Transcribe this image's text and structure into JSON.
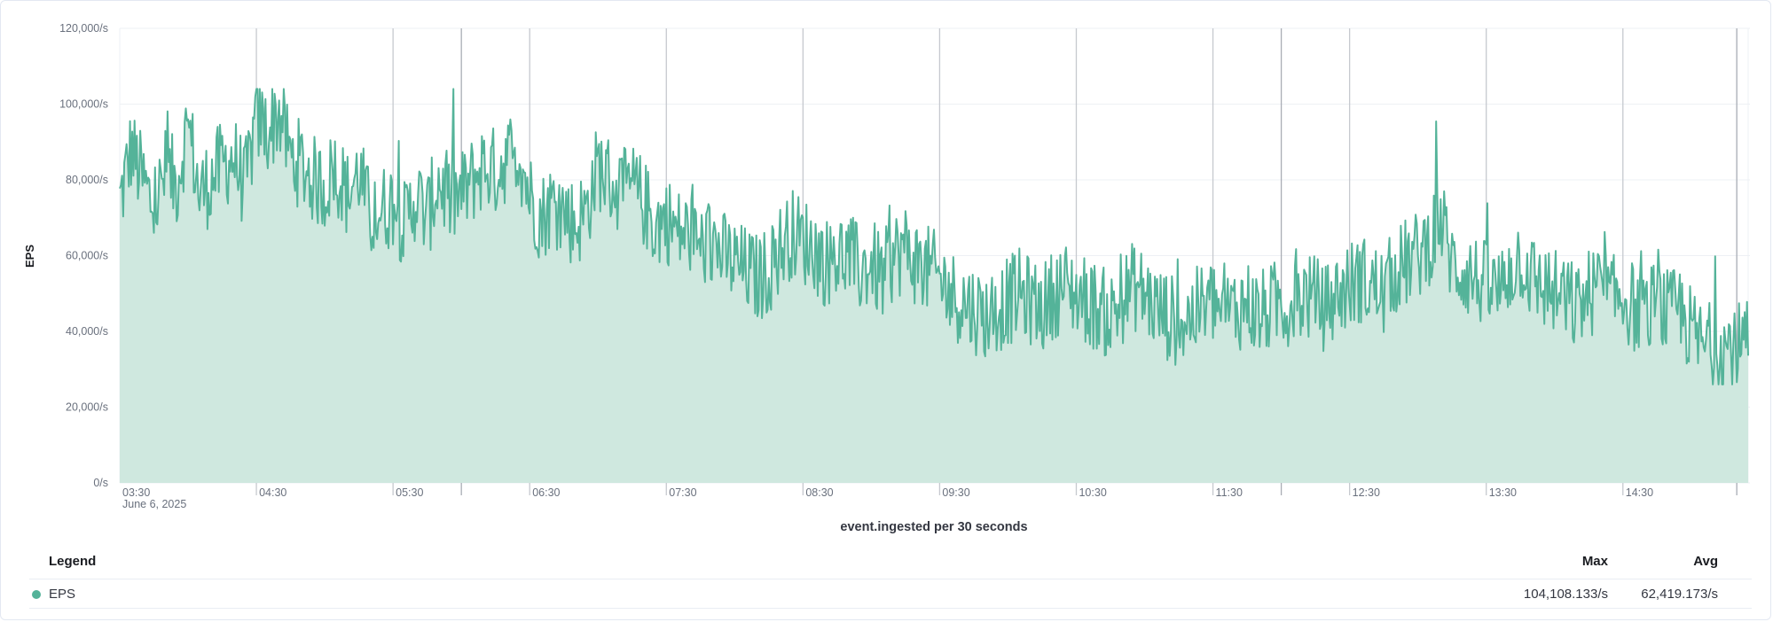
{
  "chart_data": {
    "type": "area",
    "title": "",
    "xlabel": "event.ingested per 30 seconds",
    "ylabel": "EPS",
    "ylim": [
      0,
      120000
    ],
    "y_ticks": [
      "120,000/s",
      "100,000/s",
      "80,000/s",
      "60,000/s",
      "40,000/s",
      "20,000/s",
      "0/s"
    ],
    "y_tick_values": [
      120000,
      100000,
      80000,
      60000,
      40000,
      20000,
      0
    ],
    "x_range": [
      "03:30",
      "15:25"
    ],
    "x_ticks": [
      "03:30",
      "04:30",
      "05:30",
      "06:30",
      "07:30",
      "08:30",
      "09:30",
      "10:30",
      "11:30",
      "12:30",
      "13:30",
      "14:30"
    ],
    "x_sub_label": "June 6, 2025",
    "interval_seconds": 30,
    "grid": true,
    "series": [
      {
        "name": "EPS",
        "color": "#54b399",
        "sample_interval_minutes": 5,
        "values": [
          74000,
          88000,
          80000,
          72000,
          82000,
          79000,
          95000,
          76000,
          80000,
          84000,
          86000,
          78000,
          96000,
          93000,
          98000,
          86000,
          84000,
          80000,
          78000,
          83000,
          76000,
          82000,
          70000,
          72000,
          74000,
          68000,
          76000,
          70000,
          80000,
          74000,
          76000,
          80000,
          84000,
          82000,
          86000,
          88000,
          76000,
          70000,
          74000,
          72000,
          68000,
          72000,
          84000,
          80000,
          76000,
          78000,
          74000,
          68000,
          70000,
          66000,
          66000,
          62000,
          64000,
          60000,
          58000,
          56000,
          54000,
          56000,
          62000,
          66000,
          64000,
          62000,
          58000,
          60000,
          60000,
          56000,
          58000,
          54000,
          60000,
          62000,
          58000,
          56000,
          54000,
          50000,
          48000,
          46000,
          44000,
          46000,
          48000,
          50000,
          48000,
          46000,
          50000,
          52000,
          50000,
          48000,
          46000,
          44000,
          48000,
          52000,
          50000,
          46000,
          44000,
          42000,
          44000,
          46000,
          48000,
          44000,
          46000,
          48000,
          44000,
          46000,
          48000,
          46000,
          50000,
          48000,
          46000,
          50000,
          52000,
          54000,
          52000,
          50000,
          56000,
          58000,
          60000,
          64000,
          70000,
          58000,
          56000,
          54000,
          52000,
          50000,
          56000,
          60000,
          54000,
          52000,
          50000,
          48000,
          46000,
          50000,
          52000,
          48000,
          50000,
          46000,
          44000,
          48000,
          44000,
          46000,
          40000,
          36000
        ]
      }
    ]
  },
  "legend": {
    "title": "Legend",
    "col_max": "Max",
    "col_avg": "Avg",
    "rows": [
      {
        "name": "EPS",
        "color": "#54b399",
        "max": "104,108.133/s",
        "avg": "62,419.173/s"
      }
    ]
  }
}
